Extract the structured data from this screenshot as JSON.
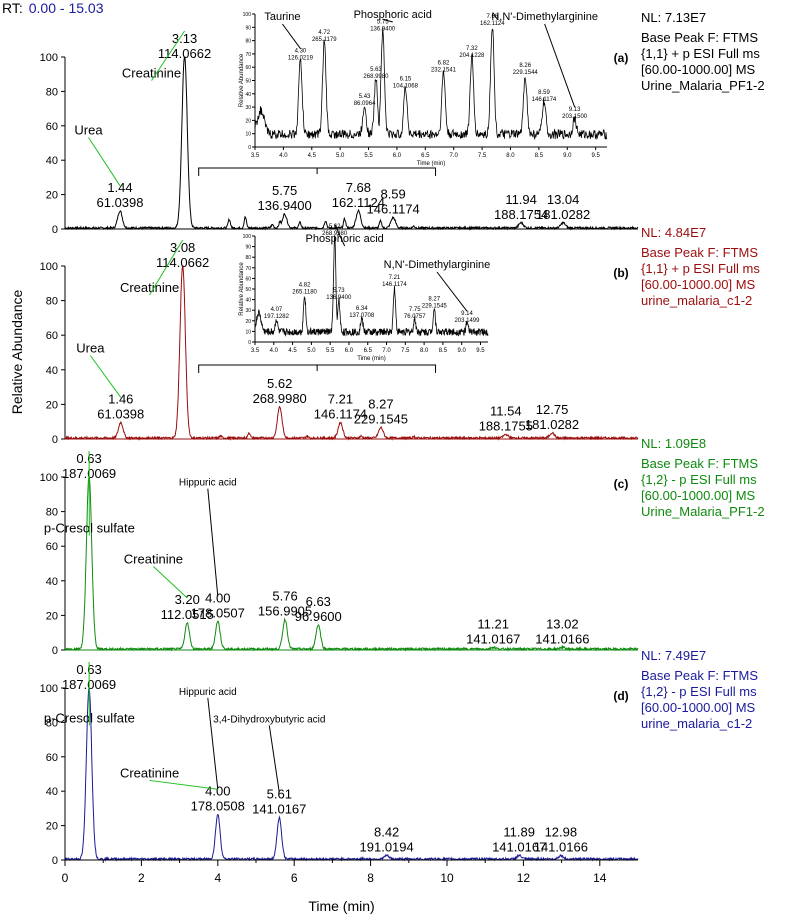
{
  "header": {
    "rt_label": "RT:",
    "rt_range": "0.00 - 15.03"
  },
  "colors": {
    "a": "#000000",
    "b": "#9b0d0d",
    "c": "#0f8a0f",
    "d": "#1a1a9a",
    "annot": "#1fbf1f",
    "axis": "#000000"
  },
  "axes": {
    "xlabel": "Time (min)",
    "ylabel": "Relative Abundance",
    "xlim": [
      0,
      15
    ],
    "xticks": [
      "0",
      "2",
      "4",
      "6",
      "8",
      "10",
      "12",
      "14"
    ],
    "yticks": [
      "0",
      "20",
      "40",
      "60",
      "80",
      "100"
    ]
  },
  "chart_data": [
    {
      "type": "line",
      "panel": "a",
      "tag": "(a)",
      "nl": "NL: 7.13E7",
      "info": [
        "Base Peak F: FTMS",
        "{1,1}  + p ESI Full ms",
        "[60.00-1000.00]  MS",
        "Urine_Malaria_PF1-2"
      ],
      "peaks": [
        {
          "x": 1.44,
          "y": 10,
          "rt": "1.44",
          "mz": "61.0398"
        },
        {
          "x": 3.13,
          "y": 100,
          "rt": "3.13",
          "mz": "114.0662"
        },
        {
          "x": 5.75,
          "y": 8,
          "rt": "5.75",
          "mz": "136.9400"
        },
        {
          "x": 7.68,
          "y": 10,
          "rt": "7.68",
          "mz": "162.1124"
        },
        {
          "x": 8.59,
          "y": 6,
          "rt": "8.59",
          "mz": "146.1174"
        },
        {
          "x": 11.94,
          "y": 3,
          "rt": "11.94",
          "mz": "188.1754"
        },
        {
          "x": 13.04,
          "y": 3,
          "rt": "13.04",
          "mz": "181.0282"
        }
      ],
      "names": [
        {
          "text": "Creatinine",
          "x": 3.05,
          "y": 88
        },
        {
          "text": "Urea",
          "x": 1.4,
          "y": 55
        }
      ],
      "inset": {
        "xlabel": "Time (min)",
        "ylabel": "Relative Abundance",
        "xlim": [
          3.5,
          9.7
        ],
        "xticks": [
          "3.5",
          "4.0",
          "4.5",
          "5.0",
          "5.5",
          "6.0",
          "6.5",
          "7.0",
          "7.5",
          "8.0",
          "8.5",
          "9.0",
          "9.5"
        ],
        "yticks": [
          "0",
          "10",
          "20",
          "30",
          "40",
          "50",
          "60",
          "70",
          "80",
          "90",
          "100"
        ],
        "names": [
          {
            "text": "Taurine",
            "x": 4.3
          },
          {
            "text": "Phosphoric acid",
            "x": 5.75
          },
          {
            "text": "N,N'-Dimethylarginine",
            "x": 9.13
          }
        ],
        "peaks": [
          {
            "x": 4.3,
            "y": 56,
            "rt": "4.30",
            "mz": "126.0219"
          },
          {
            "x": 4.72,
            "y": 70,
            "rt": "4.72",
            "mz": "265.1179"
          },
          {
            "x": 5.43,
            "y": 22,
            "rt": "5.43",
            "mz": "86.0964"
          },
          {
            "x": 5.63,
            "y": 42,
            "rt": "5.63",
            "mz": "268.9980"
          },
          {
            "x": 5.75,
            "y": 78,
            "rt": "5.75",
            "mz": "136.9400"
          },
          {
            "x": 6.15,
            "y": 35,
            "rt": "6.15",
            "mz": "104.1068"
          },
          {
            "x": 6.82,
            "y": 47,
            "rt": "6.82",
            "mz": "232.1541"
          },
          {
            "x": 7.32,
            "y": 58,
            "rt": "7.32",
            "mz": "204.1228"
          },
          {
            "x": 7.68,
            "y": 82,
            "rt": "7.68",
            "mz": "162.1124"
          },
          {
            "x": 8.26,
            "y": 45,
            "rt": "8.26",
            "mz": "229.1544"
          },
          {
            "x": 8.59,
            "y": 25,
            "rt": "8.59",
            "mz": "146.1174"
          },
          {
            "x": 9.13,
            "y": 12,
            "rt": "9.13",
            "mz": "203.1500"
          }
        ]
      }
    },
    {
      "type": "line",
      "panel": "b",
      "tag": "(b)",
      "nl": "NL: 4.84E7",
      "info": [
        "Base Peak F: FTMS",
        "{1,1}  + p ESI Full ms",
        "[60.00-1000.00]  MS",
        "urine_malaria_c1-2"
      ],
      "peaks": [
        {
          "x": 1.46,
          "y": 9,
          "rt": "1.46",
          "mz": "61.0398"
        },
        {
          "x": 3.08,
          "y": 100,
          "rt": "3.08",
          "mz": "114.0662"
        },
        {
          "x": 5.62,
          "y": 18,
          "rt": "5.62",
          "mz": "268.9980"
        },
        {
          "x": 7.21,
          "y": 9,
          "rt": "7.21",
          "mz": "146.1174"
        },
        {
          "x": 8.27,
          "y": 6,
          "rt": "8.27",
          "mz": "229.1545"
        },
        {
          "x": 11.54,
          "y": 2,
          "rt": "11.54",
          "mz": "188.1755"
        },
        {
          "x": 12.75,
          "y": 3,
          "rt": "12.75",
          "mz": "181.0282"
        }
      ],
      "names": [
        {
          "text": "Creatinine",
          "x": 3.0,
          "y": 85
        },
        {
          "text": "Urea",
          "x": 1.45,
          "y": 50
        }
      ],
      "inset": {
        "xlabel": "Time (min)",
        "ylabel": "Relative Abundance",
        "xlim": [
          3.5,
          9.7
        ],
        "xticks": [
          "3.5",
          "4.0",
          "4.5",
          "5.0",
          "5.5",
          "6.0",
          "6.5",
          "7.0",
          "7.5",
          "8.0",
          "8.5",
          "9.0",
          "9.5"
        ],
        "yticks": [
          "0",
          "10",
          "20",
          "30",
          "40",
          "50",
          "60",
          "70",
          "80",
          "90",
          "100"
        ],
        "names": [
          {
            "text": "Phosphoric acid",
            "x": 5.62
          },
          {
            "text": "N,N'-Dimethylarginine",
            "x": 9.14
          }
        ],
        "peaks": [
          {
            "x": 4.07,
            "y": 12,
            "rt": "4.07",
            "mz": "197.1282"
          },
          {
            "x": 4.82,
            "y": 35,
            "rt": "4.82",
            "mz": "265.1180"
          },
          {
            "x": 5.62,
            "y": 90,
            "rt": "5.62",
            "mz": "268.9980"
          },
          {
            "x": 5.73,
            "y": 30,
            "rt": "5.73",
            "mz": "136.9400"
          },
          {
            "x": 6.34,
            "y": 13,
            "rt": "6.34",
            "mz": "137.0708"
          },
          {
            "x": 7.21,
            "y": 42,
            "rt": "7.21",
            "mz": "146.1174"
          },
          {
            "x": 7.75,
            "y": 12,
            "rt": "7.75",
            "mz": "76.0757"
          },
          {
            "x": 8.27,
            "y": 22,
            "rt": "8.27",
            "mz": "229.1545"
          },
          {
            "x": 9.14,
            "y": 8,
            "rt": "9.14",
            "mz": "203.1499"
          }
        ]
      }
    },
    {
      "type": "line",
      "panel": "c",
      "tag": "(c)",
      "nl": "NL: 1.09E8",
      "info": [
        "Base Peak F: FTMS",
        "{1,2}  - p ESI Full ms",
        "[60.00-1000.00]  MS",
        "Urine_Malaria_PF1-2"
      ],
      "peaks": [
        {
          "x": 0.63,
          "y": 100,
          "rt": "0.63",
          "mz": "187.0069"
        },
        {
          "x": 3.2,
          "y": 15,
          "rt": "3.20",
          "mz": "112.0515"
        },
        {
          "x": 4.0,
          "y": 16,
          "rt": "4.00",
          "mz": "178.0507"
        },
        {
          "x": 5.76,
          "y": 17,
          "rt": "5.76",
          "mz": "156.9905"
        },
        {
          "x": 6.63,
          "y": 14,
          "rt": "6.63",
          "mz": "96.9600"
        },
        {
          "x": 11.21,
          "y": 1,
          "rt": "11.21",
          "mz": "141.0167"
        },
        {
          "x": 13.02,
          "y": 1,
          "rt": "13.02",
          "mz": "141.0166"
        }
      ],
      "names": [
        {
          "text": "p-Cresol sulfate",
          "x": 0.9,
          "y": 68
        },
        {
          "text": "Creatinine",
          "x": 3.1,
          "y": 50
        },
        {
          "text": "Hippuric acid",
          "x": 4.0,
          "y": 95
        }
      ]
    },
    {
      "type": "line",
      "panel": "d",
      "tag": "(d)",
      "nl": "NL: 7.49E7",
      "info": [
        "Base Peak F: FTMS",
        "{1,2}  - p ESI Full ms",
        "[60.00-1000.00]  MS",
        "urine_malaria_c1-2"
      ],
      "peaks": [
        {
          "x": 0.63,
          "y": 100,
          "rt": "0.63",
          "mz": "187.0069"
        },
        {
          "x": 4.0,
          "y": 26,
          "rt": "4.00",
          "mz": "178.0508"
        },
        {
          "x": 5.61,
          "y": 24,
          "rt": "5.61",
          "mz": "141.0167"
        },
        {
          "x": 8.42,
          "y": 2,
          "rt": "8.42",
          "mz": "191.0194"
        },
        {
          "x": 11.89,
          "y": 2,
          "rt": "11.89",
          "mz": "141.0167"
        },
        {
          "x": 12.98,
          "y": 2,
          "rt": "12.98",
          "mz": "141.0166"
        }
      ],
      "names": [
        {
          "text": "p-Cresol sulfate",
          "x": 0.9,
          "y": 80
        },
        {
          "text": "Creatinine",
          "x": 3.0,
          "y": 48
        },
        {
          "text": "Hippuric acid",
          "x": 4.0,
          "y": 96
        },
        {
          "text": "3,4-Dihydroxybutyric acid",
          "x": 5.61,
          "y": 80
        }
      ]
    }
  ]
}
